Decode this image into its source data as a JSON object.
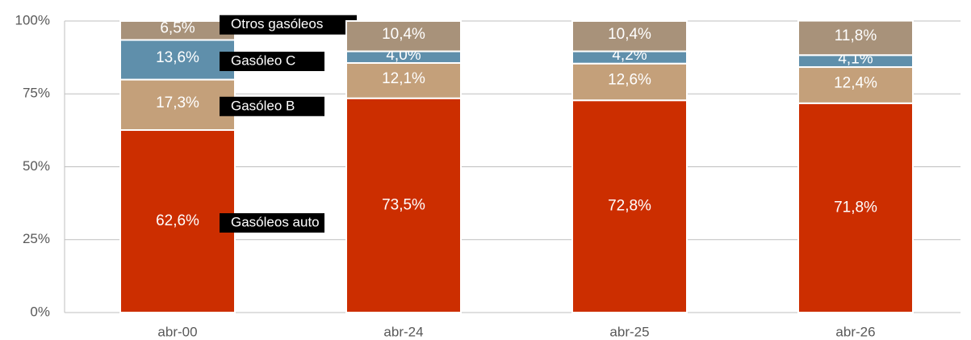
{
  "chart_data": {
    "type": "stacked-bar",
    "categories": [
      "abr-00",
      "abr-24",
      "abr-25",
      "abr-26"
    ],
    "series": [
      {
        "name": "Gasóleos auto",
        "color": "#cc2e00",
        "values": [
          62.6,
          73.5,
          72.8,
          71.8
        ],
        "value_labels": [
          "62,6%",
          "73,5%",
          "72,8%",
          "71,8%"
        ]
      },
      {
        "name": "Gasóleo B",
        "color": "#c4a07a",
        "values": [
          17.3,
          12.1,
          12.6,
          12.4
        ],
        "value_labels": [
          "17,3%",
          "12,1%",
          "12,6%",
          "12,4%"
        ]
      },
      {
        "name": "Gasóleo C",
        "color": "#5f8fab",
        "values": [
          13.6,
          4.0,
          4.2,
          4.1
        ],
        "value_labels": [
          "13,6%",
          "4,0%",
          "4,2%",
          "4,1%"
        ]
      },
      {
        "name": "Otros gasóleos",
        "color": "#a8927a",
        "values": [
          6.5,
          10.4,
          10.4,
          11.8
        ],
        "value_labels": [
          "6,5%",
          "10,4%",
          "10,4%",
          "11,8%"
        ]
      }
    ],
    "ylim": [
      0,
      100
    ],
    "yticks": [
      {
        "value": 0,
        "label": "0%"
      },
      {
        "value": 25,
        "label": "25%"
      },
      {
        "value": 50,
        "label": "50%"
      },
      {
        "value": 75,
        "label": "75%"
      },
      {
        "value": 100,
        "label": "100%"
      }
    ],
    "grid": true
  }
}
